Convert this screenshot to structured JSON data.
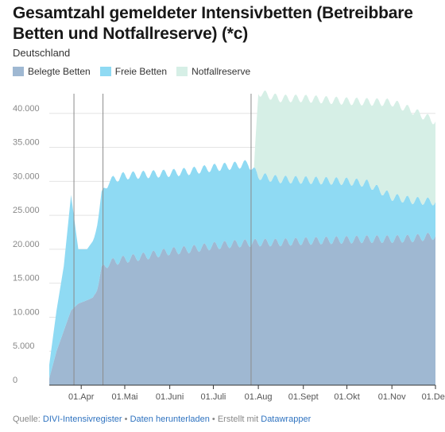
{
  "title": "Gesamtzahl gemeldeter Intensivbetten (Betreibbare Betten und Notfallreserve) (*c)",
  "subtitle": "Deutschland",
  "legend": [
    {
      "label": "Belegte Betten",
      "color": "#9fb8d2"
    },
    {
      "label": "Freie Betten",
      "color": "#8fdaf3"
    },
    {
      "label": "Notfallreserve",
      "color": "#d6efe6"
    }
  ],
  "footer": {
    "prefix": "Quelle:",
    "source": "DIVI-Intensivregister",
    "bullet1": "•",
    "download": "Daten herunterladen",
    "bullet2": "•",
    "created": "Erstellt mit",
    "tool": "Datawrapper"
  },
  "chart_data": {
    "type": "area",
    "stacked": true,
    "title": "Gesamtzahl gemeldeter Intensivbetten (Betreibbare Betten und Notfallreserve) (*c)",
    "subtitle": "Deutschland",
    "x_ticks": [
      "01.Apr",
      "01.Mai",
      "01.Juni",
      "01.Juli",
      "01.Aug",
      "01.Sept",
      "01.Okt",
      "01.Nov",
      "01.Dez"
    ],
    "x_range": [
      "2020-03-10",
      "2020-12-01"
    ],
    "y_ticks": [
      0,
      5000,
      10000,
      15000,
      20000,
      25000,
      30000,
      35000,
      40000
    ],
    "y_tick_labels": [
      "0",
      "5.000",
      "10.000",
      "15.000",
      "20.000",
      "25.000",
      "30.000",
      "35.000",
      "40.000"
    ],
    "ylim": [
      0,
      45000
    ],
    "grid": true,
    "vertical_reference_dates": [
      "2020-03-27",
      "2020-04-16",
      "2020-07-27"
    ],
    "series": [
      {
        "name": "Belegte Betten",
        "color": "#9fb8d2",
        "points": [
          [
            "2020-03-10",
            1000
          ],
          [
            "2020-03-15",
            5000
          ],
          [
            "2020-03-20",
            8000
          ],
          [
            "2020-03-25",
            11000
          ],
          [
            "2020-03-30",
            12000
          ],
          [
            "2020-04-05",
            12500
          ],
          [
            "2020-04-10",
            13000
          ],
          [
            "2020-04-15",
            17000
          ],
          [
            "2020-04-20",
            18000
          ],
          [
            "2020-04-30",
            18500
          ],
          [
            "2020-05-15",
            19000
          ],
          [
            "2020-06-01",
            19700
          ],
          [
            "2020-06-15",
            20000
          ],
          [
            "2020-07-01",
            20500
          ],
          [
            "2020-07-15",
            20800
          ],
          [
            "2020-08-01",
            21000
          ],
          [
            "2020-08-15",
            21000
          ],
          [
            "2020-09-01",
            21200
          ],
          [
            "2020-09-15",
            21300
          ],
          [
            "2020-10-01",
            21400
          ],
          [
            "2020-10-15",
            21500
          ],
          [
            "2020-11-01",
            21500
          ],
          [
            "2020-11-15",
            21600
          ],
          [
            "2020-12-01",
            22000
          ]
        ]
      },
      {
        "name": "Freie Betten",
        "color": "#8fdaf3",
        "points": [
          [
            "2020-03-10",
            2000
          ],
          [
            "2020-03-15",
            6000
          ],
          [
            "2020-03-20",
            9500
          ],
          [
            "2020-03-25",
            17000
          ],
          [
            "2020-03-30",
            8000
          ],
          [
            "2020-04-05",
            7500
          ],
          [
            "2020-04-10",
            8500
          ],
          [
            "2020-04-15",
            11000
          ],
          [
            "2020-04-20",
            12000
          ],
          [
            "2020-04-30",
            12300
          ],
          [
            "2020-05-15",
            12000
          ],
          [
            "2020-06-01",
            11500
          ],
          [
            "2020-06-15",
            11500
          ],
          [
            "2020-07-01",
            11500
          ],
          [
            "2020-07-15",
            11500
          ],
          [
            "2020-07-25",
            11700
          ],
          [
            "2020-08-01",
            9800
          ],
          [
            "2020-08-15",
            9300
          ],
          [
            "2020-09-01",
            9000
          ],
          [
            "2020-09-15",
            8800
          ],
          [
            "2020-10-01",
            8600
          ],
          [
            "2020-10-15",
            8200
          ],
          [
            "2020-11-01",
            6200
          ],
          [
            "2020-11-15",
            5600
          ],
          [
            "2020-12-01",
            5000
          ]
        ]
      },
      {
        "name": "Notfallreserve",
        "color": "#d6efe6",
        "points": [
          [
            "2020-07-29",
            0
          ],
          [
            "2020-08-01",
            12300
          ],
          [
            "2020-08-15",
            11900
          ],
          [
            "2020-09-01",
            12000
          ],
          [
            "2020-09-15",
            11900
          ],
          [
            "2020-10-01",
            11800
          ],
          [
            "2020-10-15",
            12000
          ],
          [
            "2020-11-01",
            13900
          ],
          [
            "2020-11-15",
            13200
          ],
          [
            "2020-12-01",
            11800
          ]
        ]
      }
    ]
  }
}
